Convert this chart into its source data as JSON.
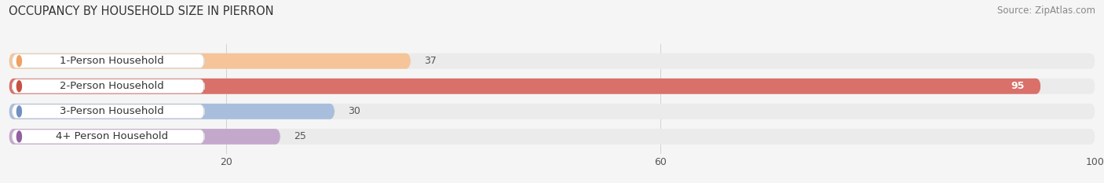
{
  "title": "OCCUPANCY BY HOUSEHOLD SIZE IN PIERRON",
  "source": "Source: ZipAtlas.com",
  "categories": [
    "1-Person Household",
    "2-Person Household",
    "3-Person Household",
    "4+ Person Household"
  ],
  "values": [
    37,
    95,
    30,
    25
  ],
  "bar_colors": [
    "#f5c499",
    "#d9706a",
    "#a8bedc",
    "#c4a8cc"
  ],
  "dot_colors": [
    "#f0a060",
    "#c85040",
    "#7090c0",
    "#9060a0"
  ],
  "bar_bg_color": "#ebebeb",
  "xlim": [
    0,
    100
  ],
  "xticks": [
    20,
    60,
    100
  ],
  "title_fontsize": 10.5,
  "source_fontsize": 8.5,
  "label_fontsize": 9.5,
  "value_fontsize": 9,
  "background_color": "#f5f5f5"
}
